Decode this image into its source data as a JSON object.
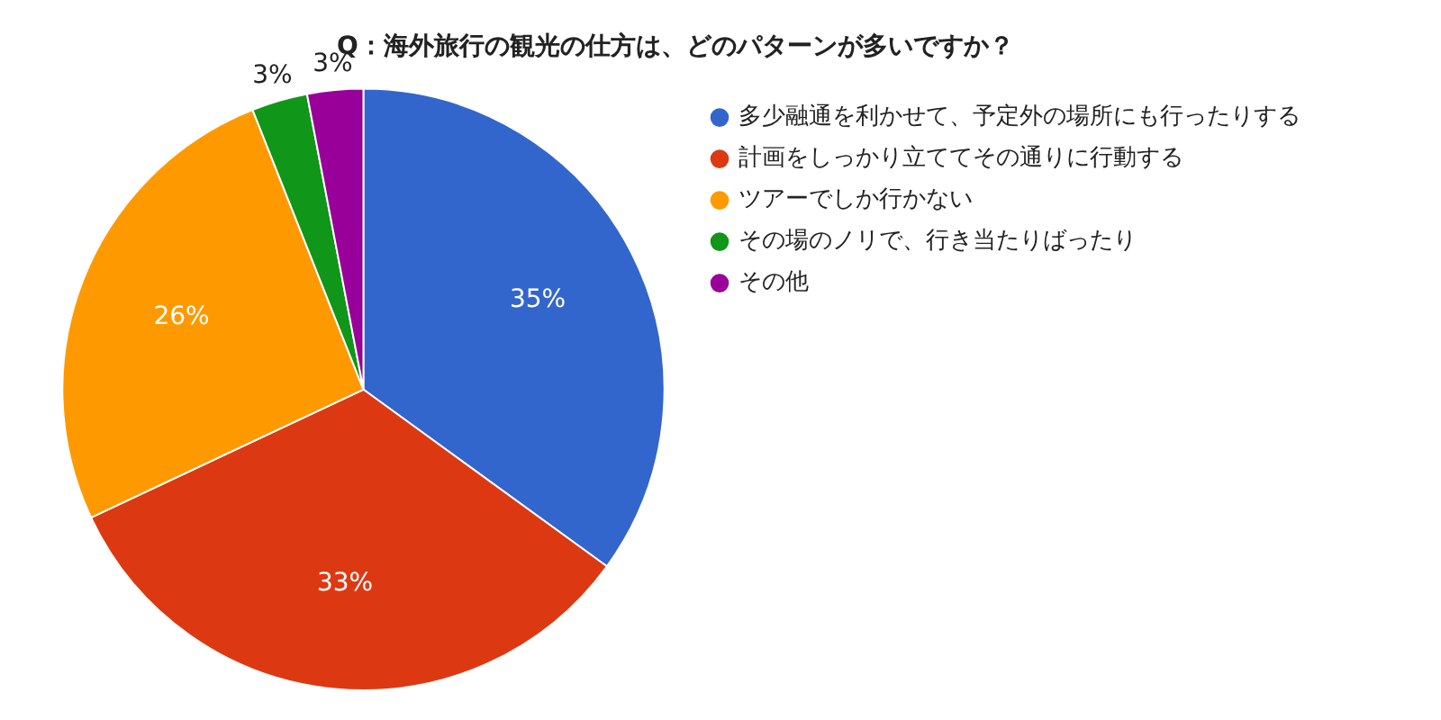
{
  "chart_data": {
    "type": "pie",
    "title": "Q：海外旅行の観光の仕方は、どのパターンが多いですか？",
    "categories": [
      "多少融通を利かせて、予定外の場所にも行ったりする",
      "計画をしっかり立ててその通りに行動する",
      "ツアーでしか行かない",
      "その場のノリで、行き当たりばったり",
      "その他"
    ],
    "values": [
      35,
      33,
      26,
      3,
      3
    ],
    "colors": [
      "#3366cc",
      "#dc3912",
      "#ff9900",
      "#109618",
      "#990099"
    ],
    "value_labels": [
      "35%",
      "33%",
      "26%",
      "3%",
      "3%"
    ],
    "legend": "top right"
  }
}
